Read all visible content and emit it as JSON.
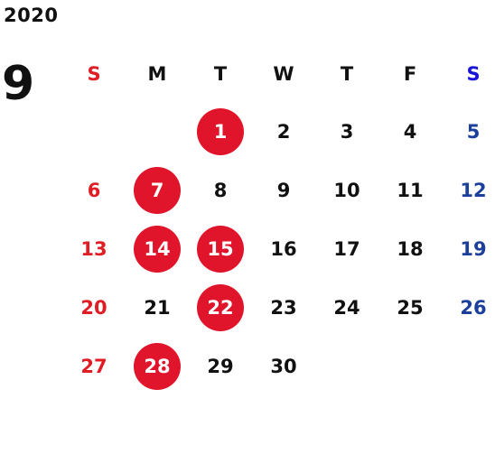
{
  "year": "2020",
  "month": "9",
  "weekdays": [
    "S",
    "M",
    "T",
    "W",
    "T",
    "F",
    "S"
  ],
  "weeks": [
    [
      "",
      "",
      "1",
      "2",
      "3",
      "4",
      "5"
    ],
    [
      "6",
      "7",
      "8",
      "9",
      "10",
      "11",
      "12"
    ],
    [
      "13",
      "14",
      "15",
      "16",
      "17",
      "18",
      "19"
    ],
    [
      "20",
      "21",
      "22",
      "23",
      "24",
      "25",
      "26"
    ],
    [
      "27",
      "28",
      "29",
      "30",
      "",
      "",
      ""
    ]
  ],
  "highlighted_days": [
    "1",
    "7",
    "14",
    "15",
    "22",
    "28"
  ],
  "colors": {
    "sunday": "#e01d25",
    "saturday": "#1b3f9a",
    "saturday_header": "#1a14d6",
    "highlight_circle": "#e0142b",
    "text": "#111111"
  }
}
